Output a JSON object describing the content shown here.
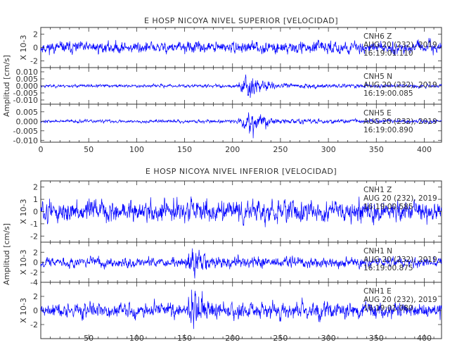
{
  "chart_data": [
    {
      "type": "line",
      "title": "E HOSP NICOYA NIVEL SUPERIOR [VELOCIDAD]",
      "ylabel": "Amplitud [cm/s]",
      "xlim": [
        0,
        418
      ],
      "xticks": [
        0,
        50,
        100,
        150,
        200,
        250,
        300,
        350,
        400
      ],
      "color": "#0000ff",
      "panels": [
        {
          "channel": "CNH6  Z",
          "date": "AUG 20 (232), 2019",
          "time": "16:19:01.110",
          "scale_label": "X 10-3",
          "ylim": [
            -3,
            3
          ],
          "yticks": [
            -2,
            0,
            2
          ],
          "ytick_labels": [
            "-2",
            "0",
            "2"
          ],
          "envelope": [
            [
              0,
              1.0
            ],
            [
              418,
              1.0
            ]
          ],
          "noise": 1.0,
          "seed": 11
        },
        {
          "channel": "CNH5  N",
          "date": "AUG 20 (232), 2019",
          "time": "16:19:00.085",
          "scale_label": "",
          "ylim": [
            -0.013,
            0.013
          ],
          "yticks": [
            -0.01,
            -0.005,
            0.0,
            0.005,
            0.01
          ],
          "ytick_labels": [
            "-0.010",
            "-0.005",
            "0.000",
            "0.005",
            "0.010"
          ],
          "envelope": [
            [
              0,
              0.0012
            ],
            [
              205,
              0.0014
            ],
            [
              212,
              0.007
            ],
            [
              218,
              0.011
            ],
            [
              228,
              0.006
            ],
            [
              245,
              0.0022
            ],
            [
              418,
              0.0014
            ]
          ],
          "noise": 0.0013,
          "seed": 23
        },
        {
          "channel": "CNH5  E",
          "date": "AUG 20 (232), 2019",
          "time": "16:19:00.890",
          "scale_label": "",
          "ylim": [
            -0.011,
            0.009
          ],
          "yticks": [
            -0.01,
            -0.005,
            0.0,
            0.005
          ],
          "ytick_labels": [
            "-0.010",
            "-0.005",
            "0.000",
            "0.005"
          ],
          "envelope": [
            [
              0,
              0.0009
            ],
            [
              205,
              0.0011
            ],
            [
              212,
              0.005
            ],
            [
              220,
              0.008
            ],
            [
              230,
              0.004
            ],
            [
              248,
              0.0016
            ],
            [
              418,
              0.0011
            ]
          ],
          "noise": 0.001,
          "seed": 37
        }
      ]
    },
    {
      "type": "line",
      "title": "E HOSP NICOYA NIVEL INFERIOR [VELOCIDAD]",
      "ylabel": "Amplitud [cm/s]",
      "xlim": [
        0,
        418
      ],
      "xticks": [
        50,
        100,
        150,
        200,
        250,
        300,
        350,
        400
      ],
      "color": "#0000ff",
      "panels": [
        {
          "channel": "CNH1  Z",
          "date": "AUG 20 (232), 2019",
          "time": "16:19:00.585",
          "scale_label": "X 10-3",
          "ylim": [
            -2.5,
            2.5
          ],
          "yticks": [
            -2,
            -1,
            0,
            1,
            2
          ],
          "ytick_labels": [
            "-2",
            "-1",
            "0",
            "1",
            "2"
          ],
          "envelope": [
            [
              0,
              1.0
            ],
            [
              418,
              1.0
            ]
          ],
          "noise": 0.9,
          "seed": 51
        },
        {
          "channel": "CNH1  N",
          "date": "AUG 20 (232), 2019",
          "time": "16:19:00.875",
          "scale_label": "X 10-3",
          "ylim": [
            -4,
            4
          ],
          "yticks": [
            -4,
            -2,
            0,
            2
          ],
          "ytick_labels": [
            "-4",
            "-2",
            "0",
            "2"
          ],
          "envelope": [
            [
              0,
              1.1
            ],
            [
              150,
              1.2
            ],
            [
              155,
              2.8
            ],
            [
              160,
              3.6
            ],
            [
              166,
              2.4
            ],
            [
              180,
              1.4
            ],
            [
              418,
              1.1
            ]
          ],
          "noise": 1.1,
          "seed": 67
        },
        {
          "channel": "CNH1  E",
          "date": "AUG 20 (232), 2019",
          "time": "16:19:01.080",
          "scale_label": "X 10-3",
          "ylim": [
            -4,
            4
          ],
          "yticks": [
            -2,
            0,
            2
          ],
          "ytick_labels": [
            "-2",
            "0",
            "2"
          ],
          "envelope": [
            [
              0,
              1.2
            ],
            [
              150,
              1.3
            ],
            [
              155,
              2.6
            ],
            [
              160,
              3.4
            ],
            [
              168,
              2.2
            ],
            [
              185,
              1.5
            ],
            [
              418,
              1.2
            ]
          ],
          "noise": 1.2,
          "seed": 89
        }
      ]
    }
  ]
}
